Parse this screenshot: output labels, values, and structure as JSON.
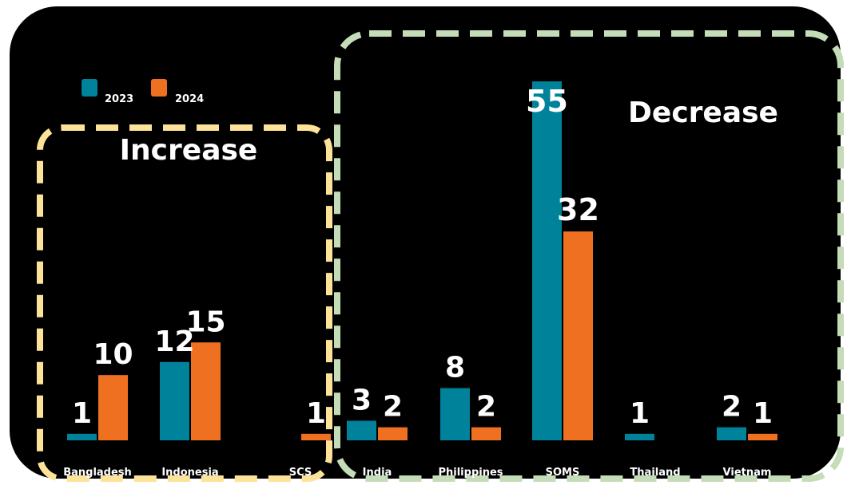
{
  "chart_data": {
    "type": "bar",
    "title": "",
    "xlabel": "",
    "ylabel": "",
    "ylim": [
      0,
      55
    ],
    "grid": false,
    "legend_position": "top-left",
    "categories": [
      "Bangladesh",
      "Indonesia",
      "SCS",
      "India",
      "Philippines",
      "SOMS",
      "Thailand",
      "Vietnam"
    ],
    "series": [
      {
        "name": "2023",
        "color": "#00829b",
        "values": [
          1,
          12,
          0,
          3,
          8,
          55,
          1,
          2
        ],
        "labels": [
          "1",
          "12",
          "",
          "3",
          "8",
          "55",
          "1",
          "2"
        ]
      },
      {
        "name": "2024",
        "color": "#f07022",
        "values": [
          10,
          15,
          1,
          2,
          2,
          32,
          0,
          1
        ],
        "labels": [
          "10",
          "15",
          "1",
          "2",
          "2",
          "32",
          "",
          "1"
        ]
      }
    ],
    "annotations": [
      {
        "text": "Increase",
        "box_color": "#fde39a",
        "categories": [
          "Bangladesh",
          "Indonesia",
          "SCS"
        ]
      },
      {
        "text": "Decrease",
        "box_color": "#c4dcb8",
        "categories": [
          "India",
          "Philippines",
          "SOMS",
          "Thailand",
          "Vietnam"
        ]
      }
    ]
  },
  "colors": {
    "background": "#000000",
    "text": "#ffffff"
  }
}
